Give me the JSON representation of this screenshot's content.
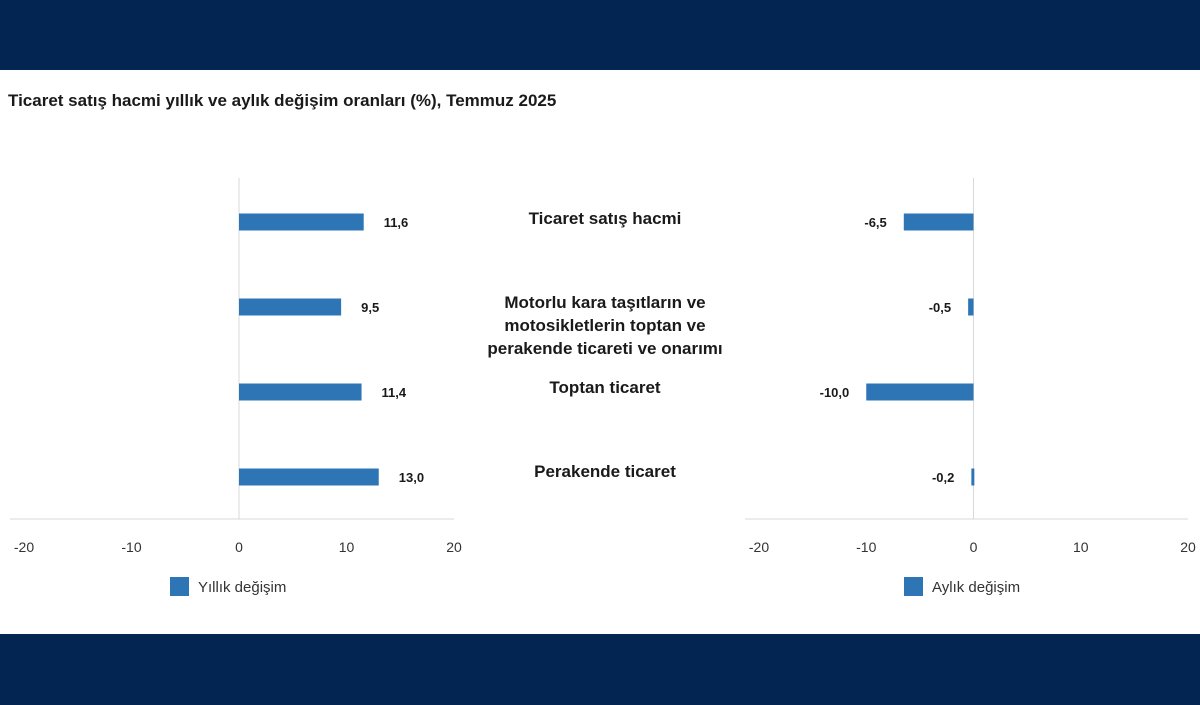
{
  "header": {
    "title": "Ticaret satış hacmi yıllık ve aylık değişim oranları (%), Temmuz 2025"
  },
  "theme": {
    "band_color": "#032552",
    "bar_color": "#2e75b6",
    "axis_color": "#d9d9d9",
    "text_color": "#1a1a1a",
    "tick_color": "#333333"
  },
  "chart_data": [
    {
      "type": "bar",
      "orientation": "horizontal",
      "categories": [
        "Ticaret satış hacmi",
        "Motorlu kara taşıtların ve motosikletlerin toptan ve perakende ticareti ve onarımı",
        "Toptan ticaret",
        "Perakende ticaret"
      ],
      "series": [
        {
          "name": "Yıllık değişim",
          "values": [
            11.6,
            9.5,
            11.4,
            13.0
          ]
        }
      ],
      "value_labels": [
        "11,6",
        "9,5",
        "11,4",
        "13,0"
      ],
      "xlim": [
        -20,
        20
      ],
      "xticks": [
        -20,
        -10,
        0,
        10,
        20
      ],
      "legend": "bottom"
    },
    {
      "type": "bar",
      "orientation": "horizontal",
      "categories": [
        "Ticaret satış hacmi",
        "Motorlu kara taşıtların ve motosikletlerin toptan ve perakende ticareti ve onarımı",
        "Toptan ticaret",
        "Perakende ticaret"
      ],
      "series": [
        {
          "name": "Aylık değişim",
          "values": [
            -6.5,
            -0.5,
            -10.0,
            -0.2
          ]
        }
      ],
      "value_labels": [
        "-6,5",
        "-0,5",
        "-10,0",
        "-0,2"
      ],
      "xlim": [
        -20,
        20
      ],
      "xticks": [
        -20,
        -10,
        0,
        10,
        20
      ],
      "legend": "bottom"
    }
  ],
  "category_lines": [
    [
      "Ticaret satış hacmi"
    ],
    [
      "Motorlu kara taşıtların ve",
      "motosikletlerin toptan ve",
      "perakende ticareti ve onarımı"
    ],
    [
      "Toptan ticaret"
    ],
    [
      "Perakende ticaret"
    ]
  ]
}
